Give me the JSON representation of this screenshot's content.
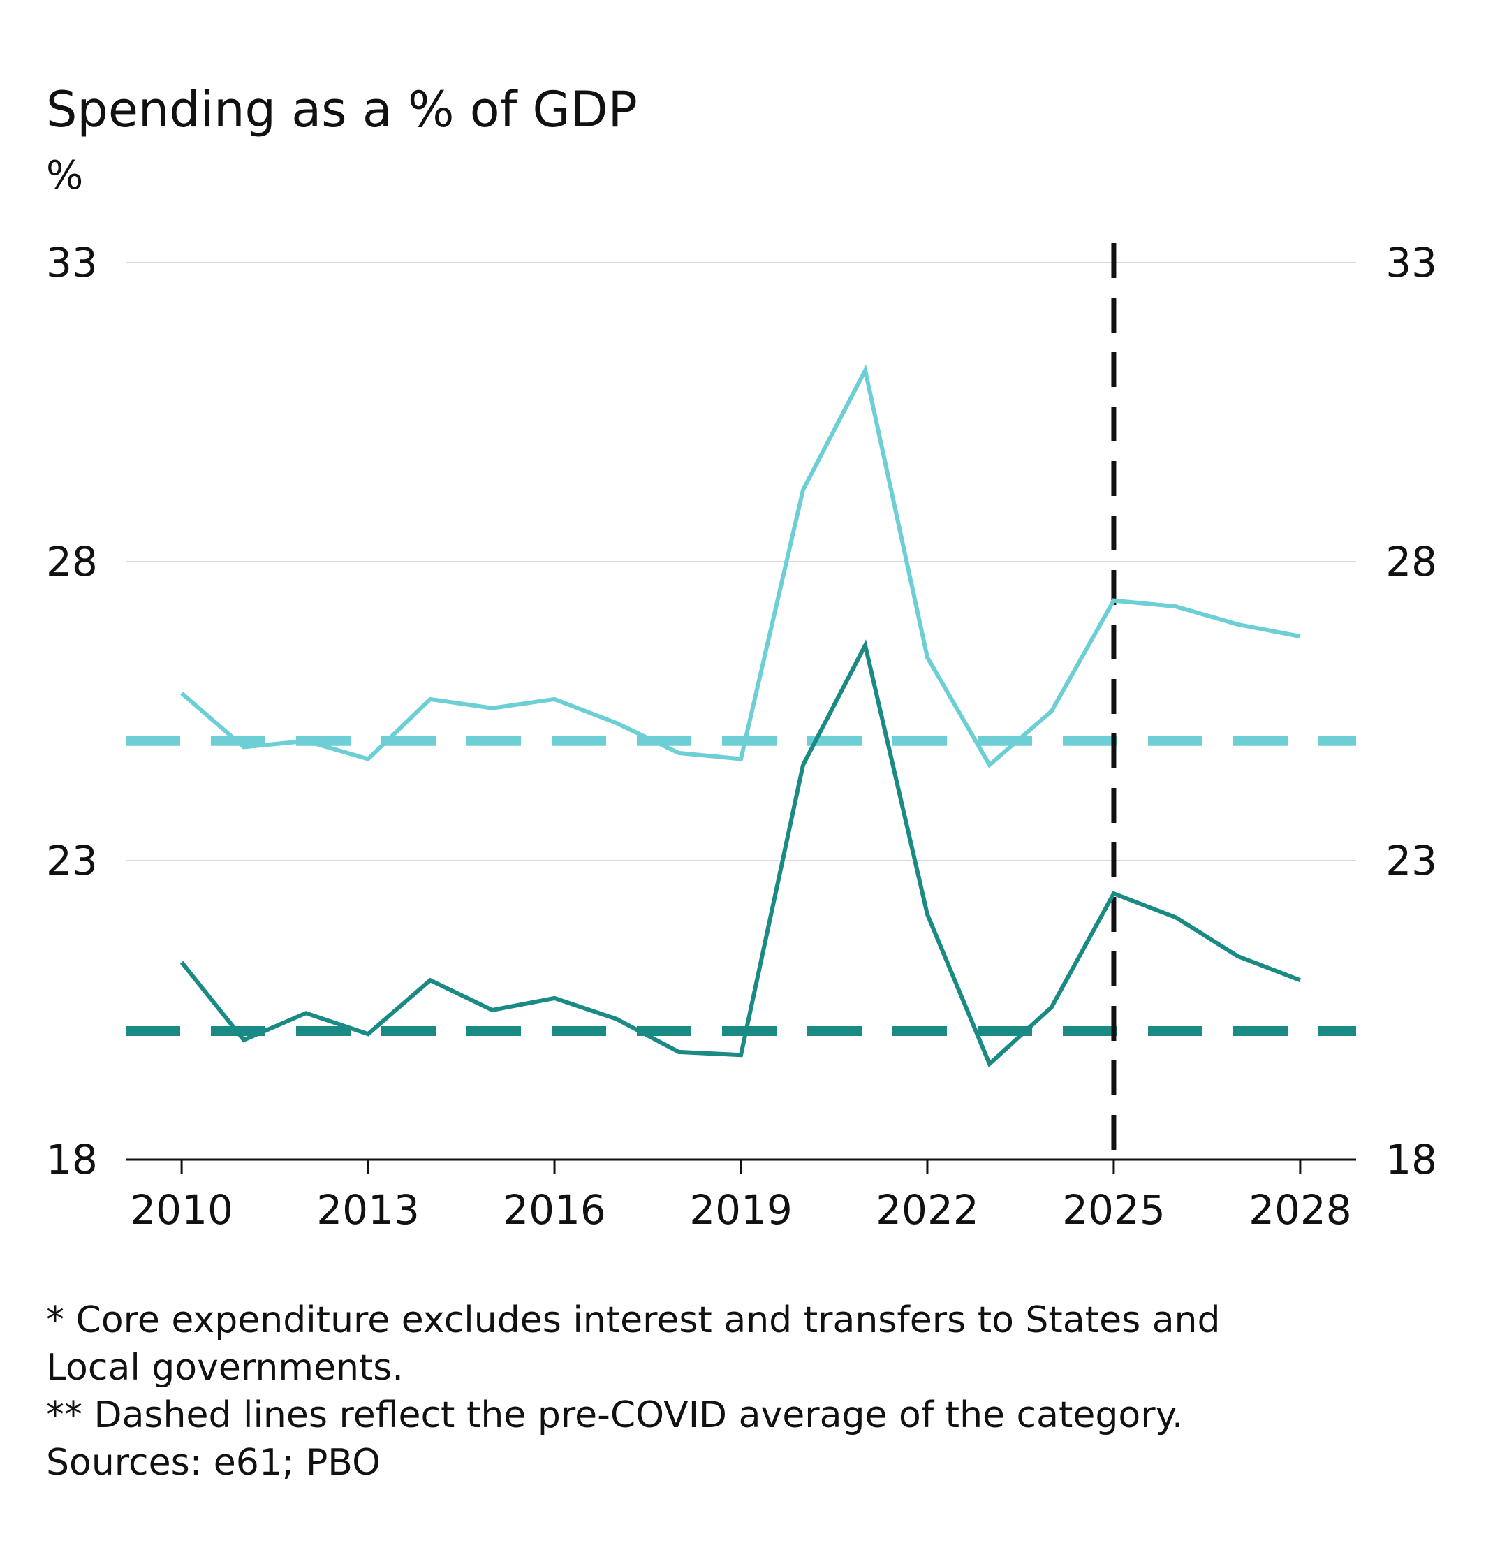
{
  "chart_data": {
    "type": "line",
    "title": "Spending as a % of GDP",
    "y_unit": "%",
    "ylim": [
      18,
      33
    ],
    "yticks": [
      18,
      23,
      28,
      33
    ],
    "y_tick_labels": [
      "18",
      "23",
      "28",
      "33"
    ],
    "xlim": [
      2009.1,
      2028.9
    ],
    "xticks": [
      2010,
      2013,
      2016,
      2019,
      2022,
      2025,
      2028
    ],
    "x_tick_labels": [
      "2010",
      "2013",
      "2016",
      "2019",
      "2022",
      "2025",
      "2028"
    ],
    "grid": true,
    "legend": "none",
    "x": [
      2010,
      2011,
      2012,
      2013,
      2014,
      2015,
      2016,
      2017,
      2018,
      2019,
      2020,
      2021,
      2022,
      2023,
      2024,
      2025,
      2026,
      2027,
      2028
    ],
    "series": [
      {
        "color": "#6dcfd6",
        "values": [
          25.8,
          24.9,
          25.0,
          24.7,
          25.7,
          25.55,
          25.7,
          25.3,
          24.8,
          24.7,
          29.2,
          31.2,
          26.4,
          24.6,
          25.5,
          27.35,
          27.25,
          26.95,
          26.75
        ]
      },
      {
        "color": "#1a8a84",
        "values": [
          21.3,
          20.0,
          20.45,
          20.1,
          21.0,
          20.5,
          20.7,
          20.35,
          19.8,
          19.75,
          24.6,
          26.6,
          22.1,
          19.6,
          20.55,
          22.45,
          22.05,
          21.4,
          21.0
        ]
      }
    ],
    "reference_lines": [
      {
        "orientation": "horizontal",
        "value": 25.0,
        "color": "#6dcfd6",
        "style": "dashed"
      },
      {
        "orientation": "horizontal",
        "value": 20.15,
        "color": "#1a8a84",
        "style": "dashed"
      },
      {
        "orientation": "vertical",
        "value": 2025,
        "color": "#111111",
        "style": "dashed"
      }
    ]
  },
  "notes": {
    "line1": "* Core expenditure excludes interest and transfers to States and",
    "line2": "Local governments.",
    "line3": "** Dashed lines reflect the pre-COVID average of the category.",
    "line4": "Sources: e61; PBO"
  }
}
